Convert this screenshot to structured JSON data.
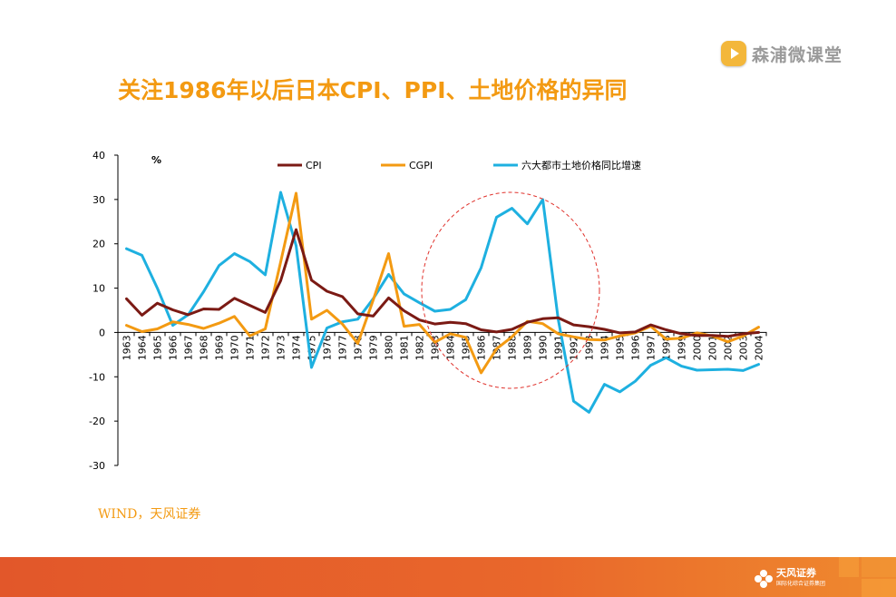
{
  "title": "关注1986年以后日本CPI、PPI、土地价格的异同",
  "brand": {
    "name": "森浦微课堂",
    "icon": "play-badge-icon"
  },
  "source": "WIND，天风证券",
  "footer": {
    "logo_name": "天风证券",
    "logo_sub": "国际化综合证券集团",
    "bg_color": "#e2572a"
  },
  "chart_data": {
    "type": "line",
    "unit_label": "%",
    "ylim": [
      -30,
      40
    ],
    "yticks": [
      40,
      30,
      20,
      10,
      0,
      -10,
      -20,
      -30
    ],
    "grid": false,
    "legend_placement": "top",
    "categories": [
      "1963",
      "1964",
      "1965",
      "1966",
      "1967",
      "1968",
      "1969",
      "1970",
      "1971",
      "1972",
      "1973",
      "1974",
      "1975",
      "1976",
      "1977",
      "1978",
      "1979",
      "1980",
      "1981",
      "1982",
      "1983",
      "1984",
      "1985",
      "1986",
      "1987",
      "1988",
      "1989",
      "1990",
      "1991",
      "1992",
      "1993",
      "1994",
      "1995",
      "1996",
      "1997",
      "1998",
      "1999",
      "2000",
      "2001",
      "2002",
      "2003",
      "2004"
    ],
    "series": [
      {
        "name": "CPI",
        "color": "#7b1a14",
        "values": [
          7.6,
          3.9,
          6.6,
          5.1,
          4.0,
          5.3,
          5.2,
          7.7,
          6.1,
          4.5,
          11.7,
          23.2,
          11.8,
          9.3,
          8.1,
          4.2,
          3.7,
          7.8,
          4.9,
          2.8,
          1.9,
          2.3,
          2.0,
          0.6,
          0.1,
          0.7,
          2.3,
          3.1,
          3.3,
          1.7,
          1.3,
          0.7,
          -0.1,
          0.1,
          1.7,
          0.6,
          -0.3,
          -0.7,
          -0.7,
          -0.9,
          -0.3,
          0.0
        ]
      },
      {
        "name": "CGPI",
        "color": "#f39a12",
        "values": [
          1.6,
          0.2,
          0.8,
          2.4,
          1.8,
          0.9,
          2.1,
          3.6,
          -0.8,
          0.8,
          15.9,
          31.4,
          3.0,
          5.0,
          1.9,
          -2.5,
          7.3,
          17.8,
          1.4,
          1.8,
          -2.2,
          -0.3,
          -1.1,
          -9.1,
          -3.7,
          -1.0,
          2.5,
          2.0,
          -0.3,
          -1.0,
          -1.6,
          -1.7,
          -0.8,
          -0.1,
          1.4,
          -1.5,
          -1.3,
          -0.1,
          -0.8,
          -2.1,
          -0.8,
          1.2
        ]
      },
      {
        "name": "六大都市土地价格同比增速",
        "color": "#1eb0e0",
        "values": [
          18.9,
          17.4,
          10.0,
          1.6,
          4.0,
          9.2,
          15.1,
          17.8,
          16.0,
          13.0,
          31.6,
          19.6,
          -7.9,
          1.0,
          2.4,
          3.0,
          7.6,
          13.1,
          8.7,
          6.7,
          4.8,
          5.2,
          7.4,
          14.6,
          26.0,
          28.0,
          24.5,
          30.0,
          3.0,
          -15.5,
          -18.0,
          -11.7,
          -13.4,
          -11.0,
          -7.4,
          -5.7,
          -7.6,
          -8.5,
          -8.4,
          -8.3,
          -8.6,
          -7.2
        ]
      }
    ]
  }
}
